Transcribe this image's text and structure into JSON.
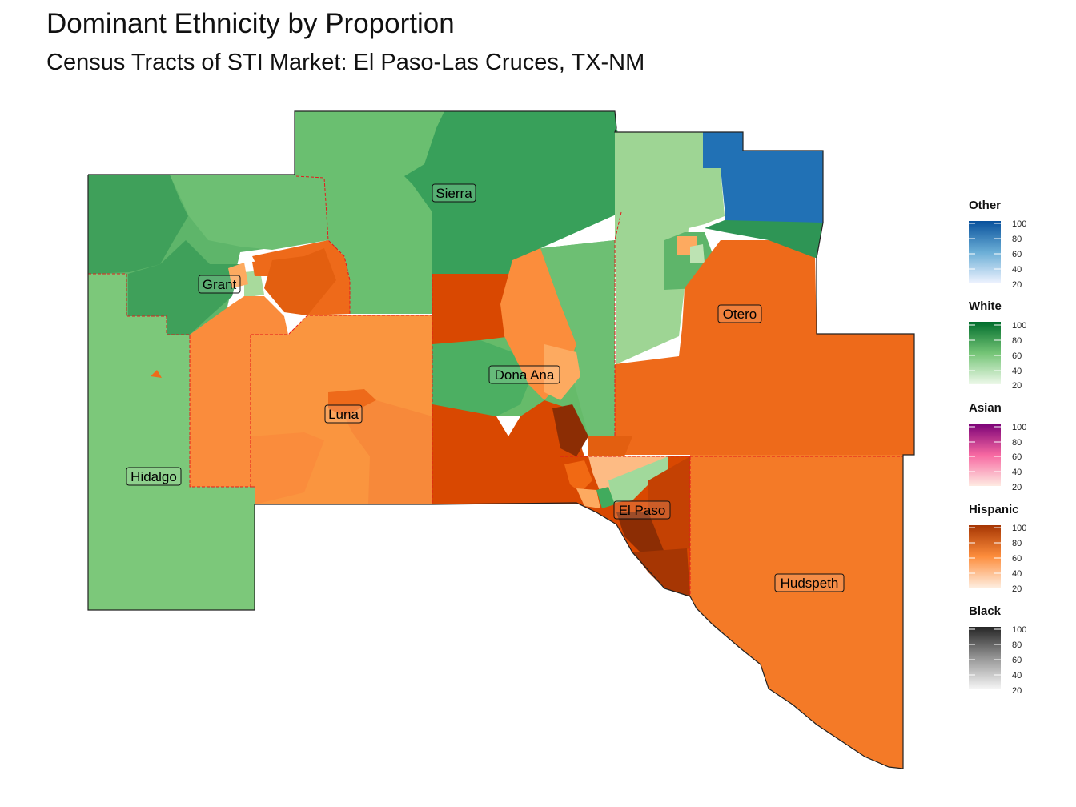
{
  "title": "Dominant Ethnicity by Proportion",
  "subtitle": "Census Tracts of STI Market: El Paso-Las Cruces, TX-NM",
  "counties": [
    {
      "name": "Sierra"
    },
    {
      "name": "Grant"
    },
    {
      "name": "Otero"
    },
    {
      "name": "Dona Ana"
    },
    {
      "name": "Luna"
    },
    {
      "name": "Hidalgo"
    },
    {
      "name": "El Paso"
    },
    {
      "name": "Hudspeth"
    }
  ],
  "legends": [
    {
      "title": "Other",
      "colors": [
        "#EFF3FF",
        "#6BAED6",
        "#08519C"
      ],
      "ticks": [
        "100",
        "80",
        "60",
        "40",
        "20"
      ]
    },
    {
      "title": "White",
      "colors": [
        "#EDF8E9",
        "#74C476",
        "#006D2C"
      ],
      "ticks": [
        "100",
        "80",
        "60",
        "40",
        "20"
      ]
    },
    {
      "title": "Asian",
      "colors": [
        "#FEEBE2",
        "#F768A1",
        "#7A0177"
      ],
      "ticks": [
        "100",
        "80",
        "60",
        "40",
        "20"
      ]
    },
    {
      "title": "Hispanic",
      "colors": [
        "#FEEDDE",
        "#FD8D3C",
        "#A63603"
      ],
      "ticks": [
        "100",
        "80",
        "60",
        "40",
        "20"
      ]
    },
    {
      "title": "Black",
      "colors": [
        "#F7F7F7",
        "#969696",
        "#252525"
      ],
      "ticks": [
        "100",
        "80",
        "60",
        "40",
        "20"
      ]
    }
  ]
}
